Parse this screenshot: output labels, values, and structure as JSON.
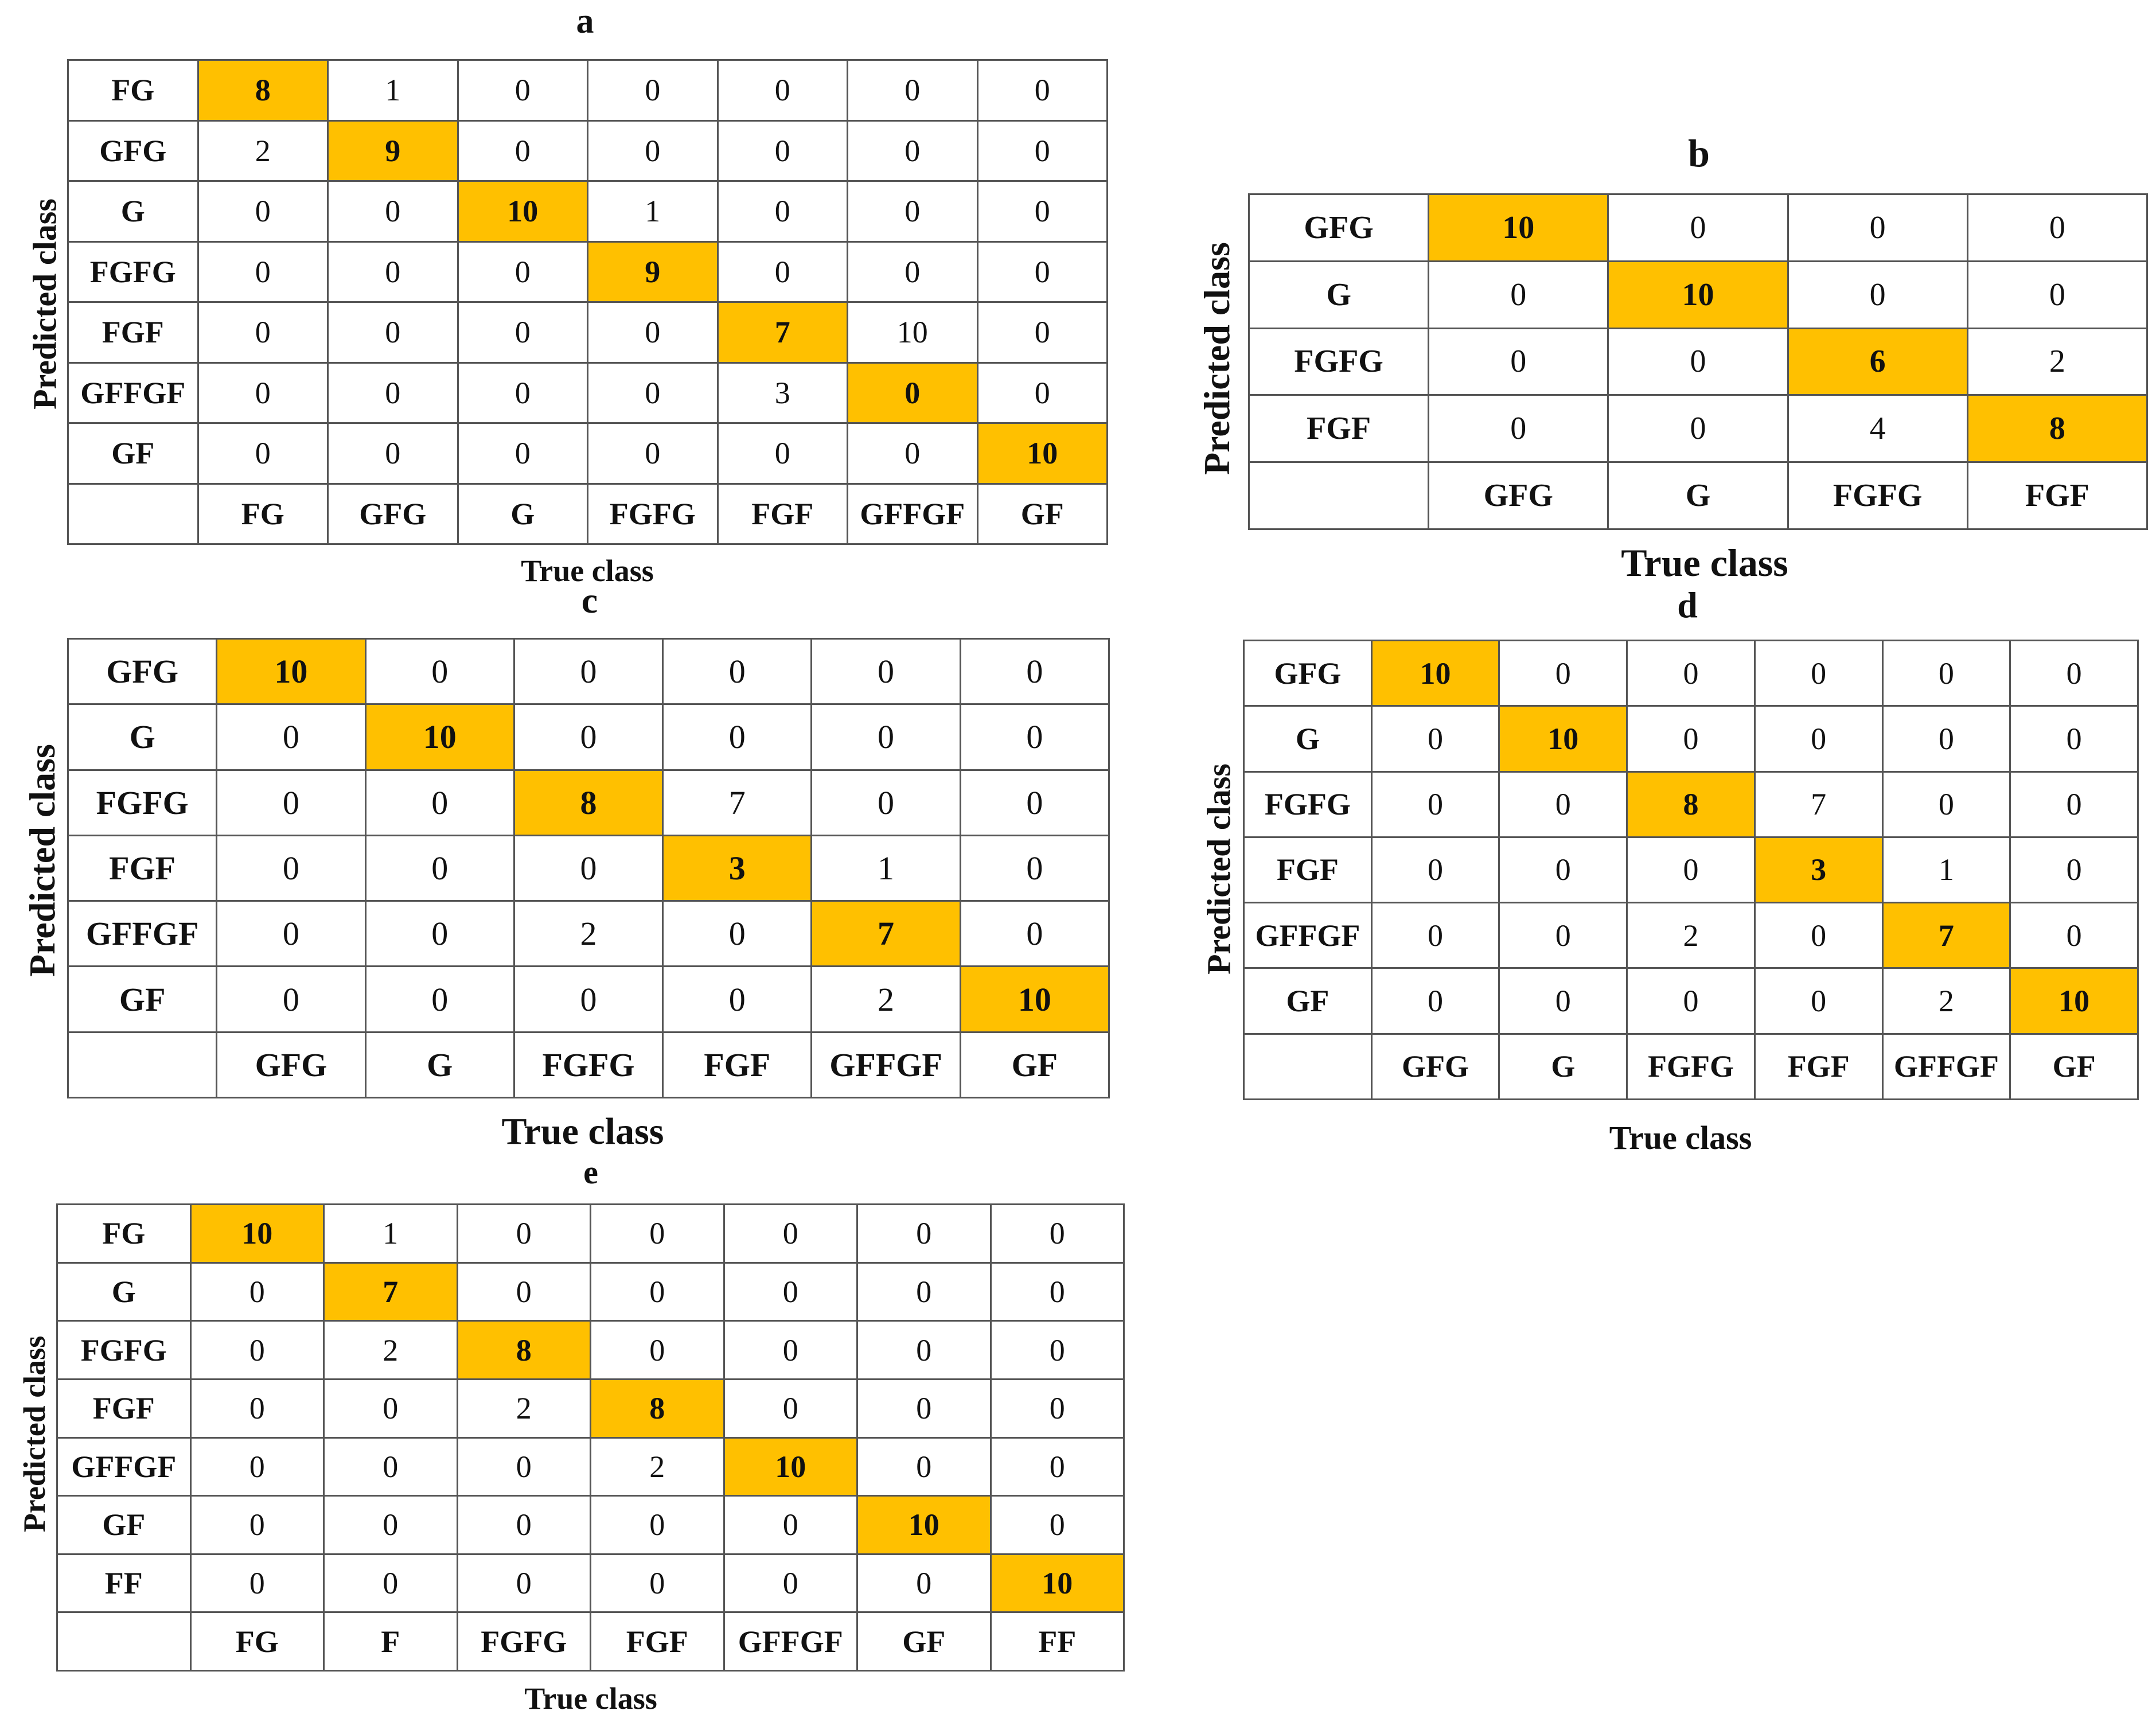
{
  "panels": [
    {
      "id": "a",
      "title": "a",
      "ylabel": "Predicted class",
      "xlabel": "True class",
      "rows": [
        "FG",
        "GFG",
        "G",
        "FGFG",
        "FGF",
        "GFFGF",
        "GF"
      ],
      "cols": [
        "FG",
        "GFG",
        "G",
        "FGFG",
        "FGF",
        "GFFGF",
        "GF"
      ],
      "matrix": [
        [
          8,
          1,
          0,
          0,
          0,
          0,
          0
        ],
        [
          2,
          9,
          0,
          0,
          0,
          0,
          0
        ],
        [
          0,
          0,
          10,
          1,
          0,
          0,
          0
        ],
        [
          0,
          0,
          0,
          9,
          0,
          0,
          0
        ],
        [
          0,
          0,
          0,
          0,
          7,
          10,
          0
        ],
        [
          0,
          0,
          0,
          0,
          3,
          0,
          0
        ],
        [
          0,
          0,
          0,
          0,
          0,
          0,
          10
        ]
      ]
    },
    {
      "id": "b",
      "title": "b",
      "ylabel": "Predicted class",
      "xlabel": "True class",
      "rows": [
        "GFG",
        "G",
        "FGFG",
        "FGF"
      ],
      "cols": [
        "GFG",
        "G",
        "FGFG",
        "FGF"
      ],
      "matrix": [
        [
          10,
          0,
          0,
          0
        ],
        [
          0,
          10,
          0,
          0
        ],
        [
          0,
          0,
          6,
          2
        ],
        [
          0,
          0,
          4,
          8
        ]
      ]
    },
    {
      "id": "c",
      "title": "c",
      "ylabel": "Predicted class",
      "xlabel": "True class",
      "rows": [
        "GFG",
        "G",
        "FGFG",
        "FGF",
        "GFFGF",
        "GF"
      ],
      "cols": [
        "GFG",
        "G",
        "FGFG",
        "FGF",
        "GFFGF",
        "GF"
      ],
      "matrix": [
        [
          10,
          0,
          0,
          0,
          0,
          0
        ],
        [
          0,
          10,
          0,
          0,
          0,
          0
        ],
        [
          0,
          0,
          8,
          7,
          0,
          0
        ],
        [
          0,
          0,
          0,
          3,
          1,
          0
        ],
        [
          0,
          0,
          2,
          0,
          7,
          0
        ],
        [
          0,
          0,
          0,
          0,
          2,
          10
        ]
      ]
    },
    {
      "id": "d",
      "title": "d",
      "ylabel": "Predicted class",
      "xlabel": "True class",
      "rows": [
        "GFG",
        "G",
        "FGFG",
        "FGF",
        "GFFGF",
        "GF"
      ],
      "cols": [
        "GFG",
        "G",
        "FGFG",
        "FGF",
        "GFFGF",
        "GF"
      ],
      "matrix": [
        [
          10,
          0,
          0,
          0,
          0,
          0
        ],
        [
          0,
          10,
          0,
          0,
          0,
          0
        ],
        [
          0,
          0,
          8,
          7,
          0,
          0
        ],
        [
          0,
          0,
          0,
          3,
          1,
          0
        ],
        [
          0,
          0,
          2,
          0,
          7,
          0
        ],
        [
          0,
          0,
          0,
          0,
          2,
          10
        ]
      ]
    },
    {
      "id": "e",
      "title": "e",
      "ylabel": "Predicted class",
      "xlabel": "True class",
      "rows": [
        "FG",
        "G",
        "FGFG",
        "FGF",
        "GFFGF",
        "GF",
        "FF"
      ],
      "cols": [
        "FG",
        "F",
        "FGFG",
        "FGF",
        "GFFGF",
        "GF",
        "FF"
      ],
      "matrix": [
        [
          10,
          1,
          0,
          0,
          0,
          0,
          0
        ],
        [
          0,
          7,
          0,
          0,
          0,
          0,
          0
        ],
        [
          0,
          2,
          8,
          0,
          0,
          0,
          0
        ],
        [
          0,
          0,
          2,
          8,
          0,
          0,
          0
        ],
        [
          0,
          0,
          0,
          2,
          10,
          0,
          0
        ],
        [
          0,
          0,
          0,
          0,
          0,
          10,
          0
        ],
        [
          0,
          0,
          0,
          0,
          0,
          0,
          10
        ]
      ]
    }
  ],
  "colors": {
    "diagonal": "#FFC000",
    "grid": "#555555",
    "text": "#111111"
  },
  "chart_data": [
    {
      "type": "heatmap",
      "title": "a",
      "xlabel": "True class",
      "ylabel": "Predicted class",
      "x": [
        "FG",
        "GFG",
        "G",
        "FGFG",
        "FGF",
        "GFFGF",
        "GF"
      ],
      "y": [
        "FG",
        "GFG",
        "G",
        "FGFG",
        "FGF",
        "GFFGF",
        "GF"
      ],
      "values": [
        [
          8,
          1,
          0,
          0,
          0,
          0,
          0
        ],
        [
          2,
          9,
          0,
          0,
          0,
          0,
          0
        ],
        [
          0,
          0,
          10,
          1,
          0,
          0,
          0
        ],
        [
          0,
          0,
          0,
          9,
          0,
          0,
          0
        ],
        [
          0,
          0,
          0,
          0,
          7,
          10,
          0
        ],
        [
          0,
          0,
          0,
          0,
          3,
          0,
          0
        ],
        [
          0,
          0,
          0,
          0,
          0,
          0,
          10
        ]
      ]
    },
    {
      "type": "heatmap",
      "title": "b",
      "xlabel": "True class",
      "ylabel": "Predicted class",
      "x": [
        "GFG",
        "G",
        "FGFG",
        "FGF"
      ],
      "y": [
        "GFG",
        "G",
        "FGFG",
        "FGF"
      ],
      "values": [
        [
          10,
          0,
          0,
          0
        ],
        [
          0,
          10,
          0,
          0
        ],
        [
          0,
          0,
          6,
          2
        ],
        [
          0,
          0,
          4,
          8
        ]
      ]
    },
    {
      "type": "heatmap",
      "title": "c",
      "xlabel": "True class",
      "ylabel": "Predicted class",
      "x": [
        "GFG",
        "G",
        "FGFG",
        "FGF",
        "GFFGF",
        "GF"
      ],
      "y": [
        "GFG",
        "G",
        "FGFG",
        "FGF",
        "GFFGF",
        "GF"
      ],
      "values": [
        [
          10,
          0,
          0,
          0,
          0,
          0
        ],
        [
          0,
          10,
          0,
          0,
          0,
          0
        ],
        [
          0,
          0,
          8,
          7,
          0,
          0
        ],
        [
          0,
          0,
          0,
          3,
          1,
          0
        ],
        [
          0,
          0,
          2,
          0,
          7,
          0
        ],
        [
          0,
          0,
          0,
          0,
          2,
          10
        ]
      ]
    },
    {
      "type": "heatmap",
      "title": "d",
      "xlabel": "True class",
      "ylabel": "Predicted class",
      "x": [
        "GFG",
        "G",
        "FGFG",
        "FGF",
        "GFFGF",
        "GF"
      ],
      "y": [
        "GFG",
        "G",
        "FGFG",
        "FGF",
        "GFFGF",
        "GF"
      ],
      "values": [
        [
          10,
          0,
          0,
          0,
          0,
          0
        ],
        [
          0,
          10,
          0,
          0,
          0,
          0
        ],
        [
          0,
          0,
          8,
          7,
          0,
          0
        ],
        [
          0,
          0,
          0,
          3,
          1,
          0
        ],
        [
          0,
          0,
          2,
          0,
          7,
          0
        ],
        [
          0,
          0,
          0,
          0,
          2,
          10
        ]
      ]
    },
    {
      "type": "heatmap",
      "title": "e",
      "xlabel": "True class",
      "ylabel": "Predicted class",
      "x": [
        "FG",
        "F",
        "FGFG",
        "FGF",
        "GFFGF",
        "GF",
        "FF"
      ],
      "y": [
        "FG",
        "G",
        "FGFG",
        "FGF",
        "GFFGF",
        "GF",
        "FF"
      ],
      "values": [
        [
          10,
          1,
          0,
          0,
          0,
          0,
          0
        ],
        [
          0,
          7,
          0,
          0,
          0,
          0,
          0
        ],
        [
          0,
          2,
          8,
          0,
          0,
          0,
          0
        ],
        [
          0,
          0,
          2,
          8,
          0,
          0,
          0
        ],
        [
          0,
          0,
          0,
          2,
          10,
          0,
          0
        ],
        [
          0,
          0,
          0,
          0,
          0,
          10,
          0
        ],
        [
          0,
          0,
          0,
          0,
          0,
          0,
          10
        ]
      ]
    }
  ]
}
